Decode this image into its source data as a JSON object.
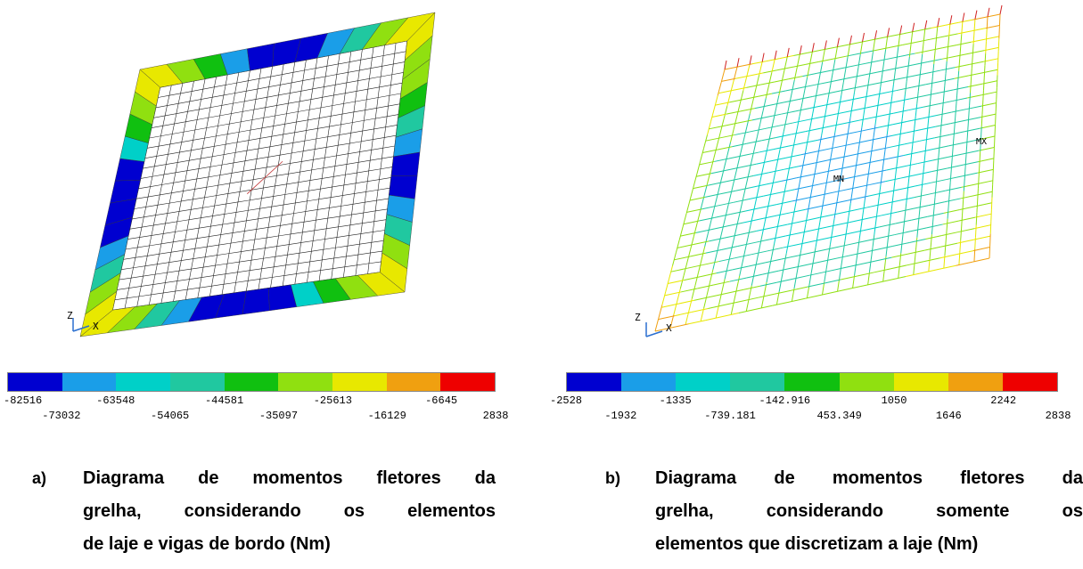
{
  "panel_a": {
    "caption_marker": "a)",
    "caption_lines": [
      "Diagrama de momentos fletores da",
      "grelha, considerando os elementos",
      "de laje e vigas de bordo (Nm)"
    ],
    "axis_z": "Z",
    "axis_x": "X",
    "colorbar": {
      "colors": [
        "#0000d0",
        "#1a9ee8",
        "#00d0c8",
        "#20c8a0",
        "#10c010",
        "#90e010",
        "#e8e800",
        "#f0a010",
        "#ee0000"
      ],
      "ticks_upper": [
        "-82516",
        "-63548",
        "-44581",
        "-25613",
        "-6645"
      ],
      "ticks_lower": [
        "-73032",
        "-54065",
        "-35097",
        "-16129",
        "2838"
      ]
    }
  },
  "panel_b": {
    "caption_marker": "b)",
    "caption_lines": [
      "Diagrama de momentos fletores da",
      "grelha, considerando somente os",
      "elementos que discretizam a laje (Nm)"
    ],
    "axis_z": "Z",
    "axis_x": "X",
    "label_mx": "MX",
    "label_mn": "MN",
    "colorbar": {
      "colors": [
        "#0000d0",
        "#1a9ee8",
        "#00d0c8",
        "#20c8a0",
        "#10c010",
        "#90e010",
        "#e8e800",
        "#f0a010",
        "#ee0000"
      ],
      "ticks_upper": [
        "-2528",
        "-1335",
        "-142.916",
        "1050",
        "2242"
      ],
      "ticks_lower": [
        "-1932",
        "-739.181",
        "453.349",
        "1646",
        "2838"
      ]
    }
  }
}
